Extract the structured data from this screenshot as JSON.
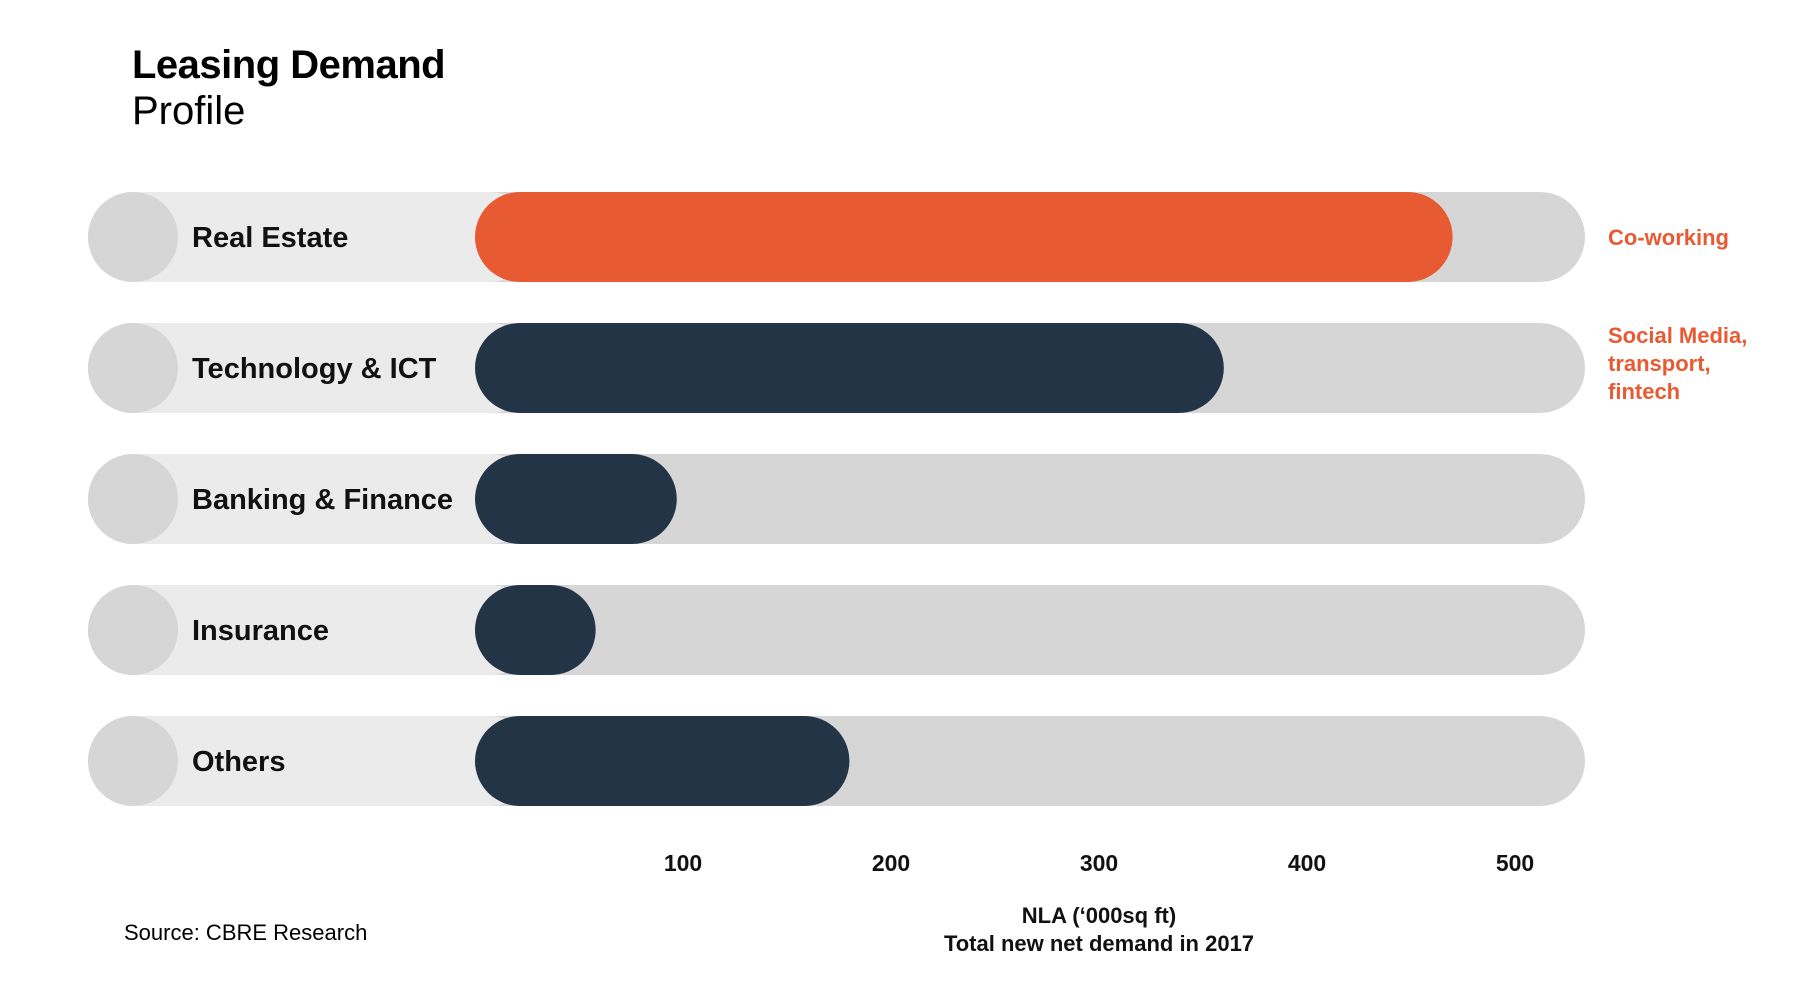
{
  "header": {
    "title": "Leasing Demand",
    "subtitle": "Profile"
  },
  "chart_data": {
    "type": "bar",
    "orientation": "horizontal",
    "categories": [
      "Real Estate",
      "Technology & ICT",
      "Banking & Finance",
      "Insurance",
      "Others"
    ],
    "values": [
      470,
      360,
      97,
      58,
      180
    ],
    "highlight_category": "Real Estate",
    "annotations": [
      {
        "category": "Real Estate",
        "text": "Co-working"
      },
      {
        "category": "Technology & ICT",
        "text": "Social Media, transport, fintech"
      }
    ],
    "xticks": [
      100,
      200,
      300,
      400,
      500
    ],
    "xlim": [
      0,
      540
    ],
    "xlabel_line1": "NLA (‘000sq ft)",
    "xlabel_line2": "Total new net demand in 2017",
    "colors": {
      "highlight": "#E85A32",
      "default": "#243447",
      "track": "#D6D6D6",
      "label_track": "#EBEBEB",
      "circle": "#D6D6D6",
      "annotation": "#E85A32"
    }
  },
  "source": "Source: CBRE Research"
}
